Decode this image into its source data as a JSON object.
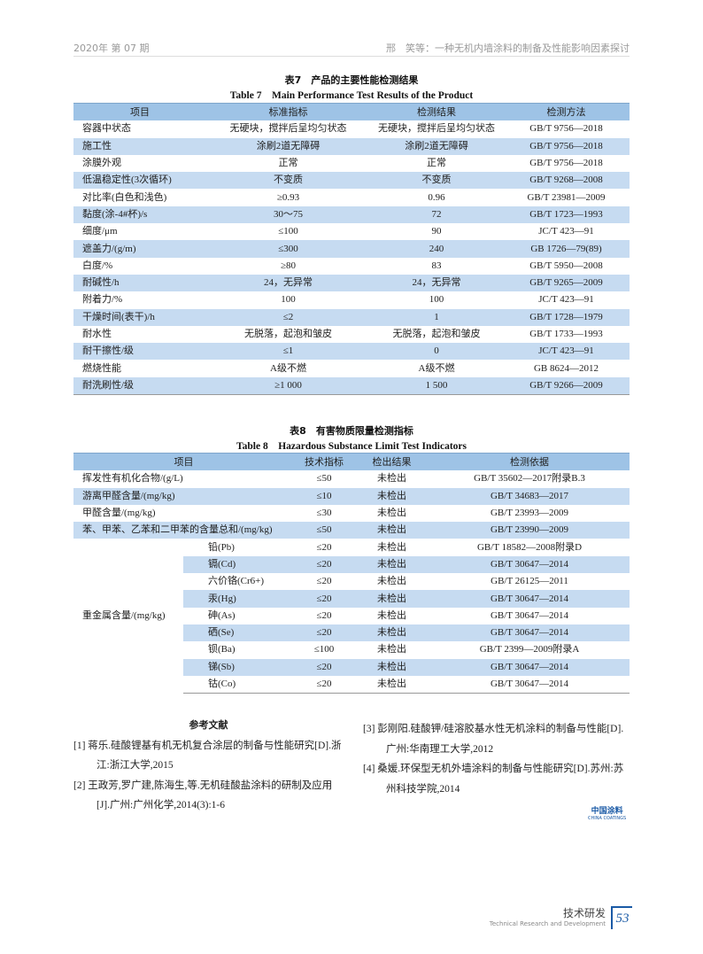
{
  "header": {
    "left": "2020年 第 07 期",
    "right": "邢　笑等：一种无机内墙涂料的制备及性能影响因素探讨"
  },
  "table7": {
    "caption_cn": "表7　产品的主要性能检测结果",
    "caption_en": "Table 7　Main Performance Test Results of the Product",
    "columns": [
      "项目",
      "标准指标",
      "检测结果",
      "检测方法"
    ],
    "rows": [
      [
        "容器中状态",
        "无硬块，搅拌后呈均匀状态",
        "无硬块，搅拌后呈均匀状态",
        "GB/T 9756—2018"
      ],
      [
        "施工性",
        "涂刷2道无障碍",
        "涂刷2道无障碍",
        "GB/T 9756—2018"
      ],
      [
        "涂膜外观",
        "正常",
        "正常",
        "GB/T 9756—2018"
      ],
      [
        "低温稳定性(3次循环)",
        "不变质",
        "不变质",
        "GB/T 9268—2008"
      ],
      [
        "对比率(白色和浅色)",
        "≥0.93",
        "0.96",
        "GB/T 23981—2009"
      ],
      [
        "黏度(涂-4#杯)/s",
        "30～75",
        "72",
        "GB/T 1723—1993"
      ],
      [
        "细度/μm",
        "≤100",
        "90",
        "JC/T 423—91"
      ],
      [
        "遮盖力/(g/m)",
        "≤300",
        "240",
        "GB 1726—79(89)"
      ],
      [
        "白度/%",
        "≥80",
        "83",
        "GB/T 5950—2008"
      ],
      [
        "耐碱性/h",
        "24，无异常",
        "24，无异常",
        "GB/T 9265—2009"
      ],
      [
        "附着力/%",
        "100",
        "100",
        "JC/T 423—91"
      ],
      [
        "干燥时间(表干)/h",
        "≤2",
        "1",
        "GB/T 1728—1979"
      ],
      [
        "耐水性",
        "无脱落，起泡和皱皮",
        "无脱落，起泡和皱皮",
        "GB/T 1733—1993"
      ],
      [
        "耐干擦性/级",
        "≤1",
        "0",
        "JC/T 423—91"
      ],
      [
        "燃烧性能",
        "A级不燃",
        "A级不燃",
        "GB 8624—2012"
      ],
      [
        "耐洗刷性/级",
        "≥1 000",
        "1 500",
        "GB/T 9266—2009"
      ]
    ]
  },
  "table8": {
    "caption_cn": "表8　有害物质限量检测指标",
    "caption_en": "Table 8　Hazardous Substance Limit Test Indicators",
    "columns": [
      "项目",
      "技术指标",
      "检出结果",
      "检测依据"
    ],
    "rows": [
      [
        "挥发性有机化合物/(g/L)",
        "≤50",
        "未检出",
        "GB/T 35602—2017附录B.3"
      ],
      [
        "游离甲醛含量/(mg/kg)",
        "≤10",
        "未检出",
        "GB/T 34683—2017"
      ],
      [
        "甲醛含量/(mg/kg)",
        "≤30",
        "未检出",
        "GB/T 23993—2009"
      ],
      [
        "苯、甲苯、乙苯和二甲苯的含量总和/(mg/kg)",
        "≤50",
        "未检出",
        "GB/T 23990—2009"
      ]
    ],
    "heavy_metal_label": "重金属含量/(mg/kg)",
    "heavy_metals": [
      [
        "铅(Pb)",
        "≤20",
        "未检出",
        "GB/T 18582—2008附录D"
      ],
      [
        "镉(Cd)",
        "≤20",
        "未检出",
        "GB/T 30647—2014"
      ],
      [
        "六价铬(Cr6+)",
        "≤20",
        "未检出",
        "GB/T 26125—2011"
      ],
      [
        "汞(Hg)",
        "≤20",
        "未检出",
        "GB/T 30647—2014"
      ],
      [
        "砷(As)",
        "≤20",
        "未检出",
        "GB/T 30647—2014"
      ],
      [
        "硒(Se)",
        "≤20",
        "未检出",
        "GB/T 30647—2014"
      ],
      [
        "钡(Ba)",
        "≤100",
        "未检出",
        "GB/T  2399—2009附录A"
      ],
      [
        "锑(Sb)",
        "≤20",
        "未检出",
        "GB/T 30647—2014"
      ],
      [
        "钴(Co)",
        "≤20",
        "未检出",
        "GB/T 30647—2014"
      ]
    ]
  },
  "references": {
    "title": "参考文献",
    "items": [
      "[1]  蒋乐.硅酸锂基有机无机复合涂层的制备与性能研究[D].浙江:浙江大学,2015",
      "[2]  王政芳,罗广建,陈海生,等.无机硅酸盐涂料的研制及应用[J].广州:广州化学,2014(3):1-6",
      "[3]  彭刚阳.硅酸钾/硅溶胶基水性无机涂料的制备与性能[D].广州:华南理工大学,2012",
      "[4]  桑媛.环保型无机外墙涂料的制备与性能研究[D].苏州:苏州科技学院,2014"
    ]
  },
  "logo": {
    "cn": "中国涂料",
    "en": "CHINA COATINGS"
  },
  "footer": {
    "section_cn": "技术研发",
    "section_en": "Technical Research and Development",
    "page": "53"
  },
  "colors": {
    "header_row": "#9ec3e6",
    "shaded_row": "#c6dbf1",
    "brand": "#1a5aa6"
  }
}
